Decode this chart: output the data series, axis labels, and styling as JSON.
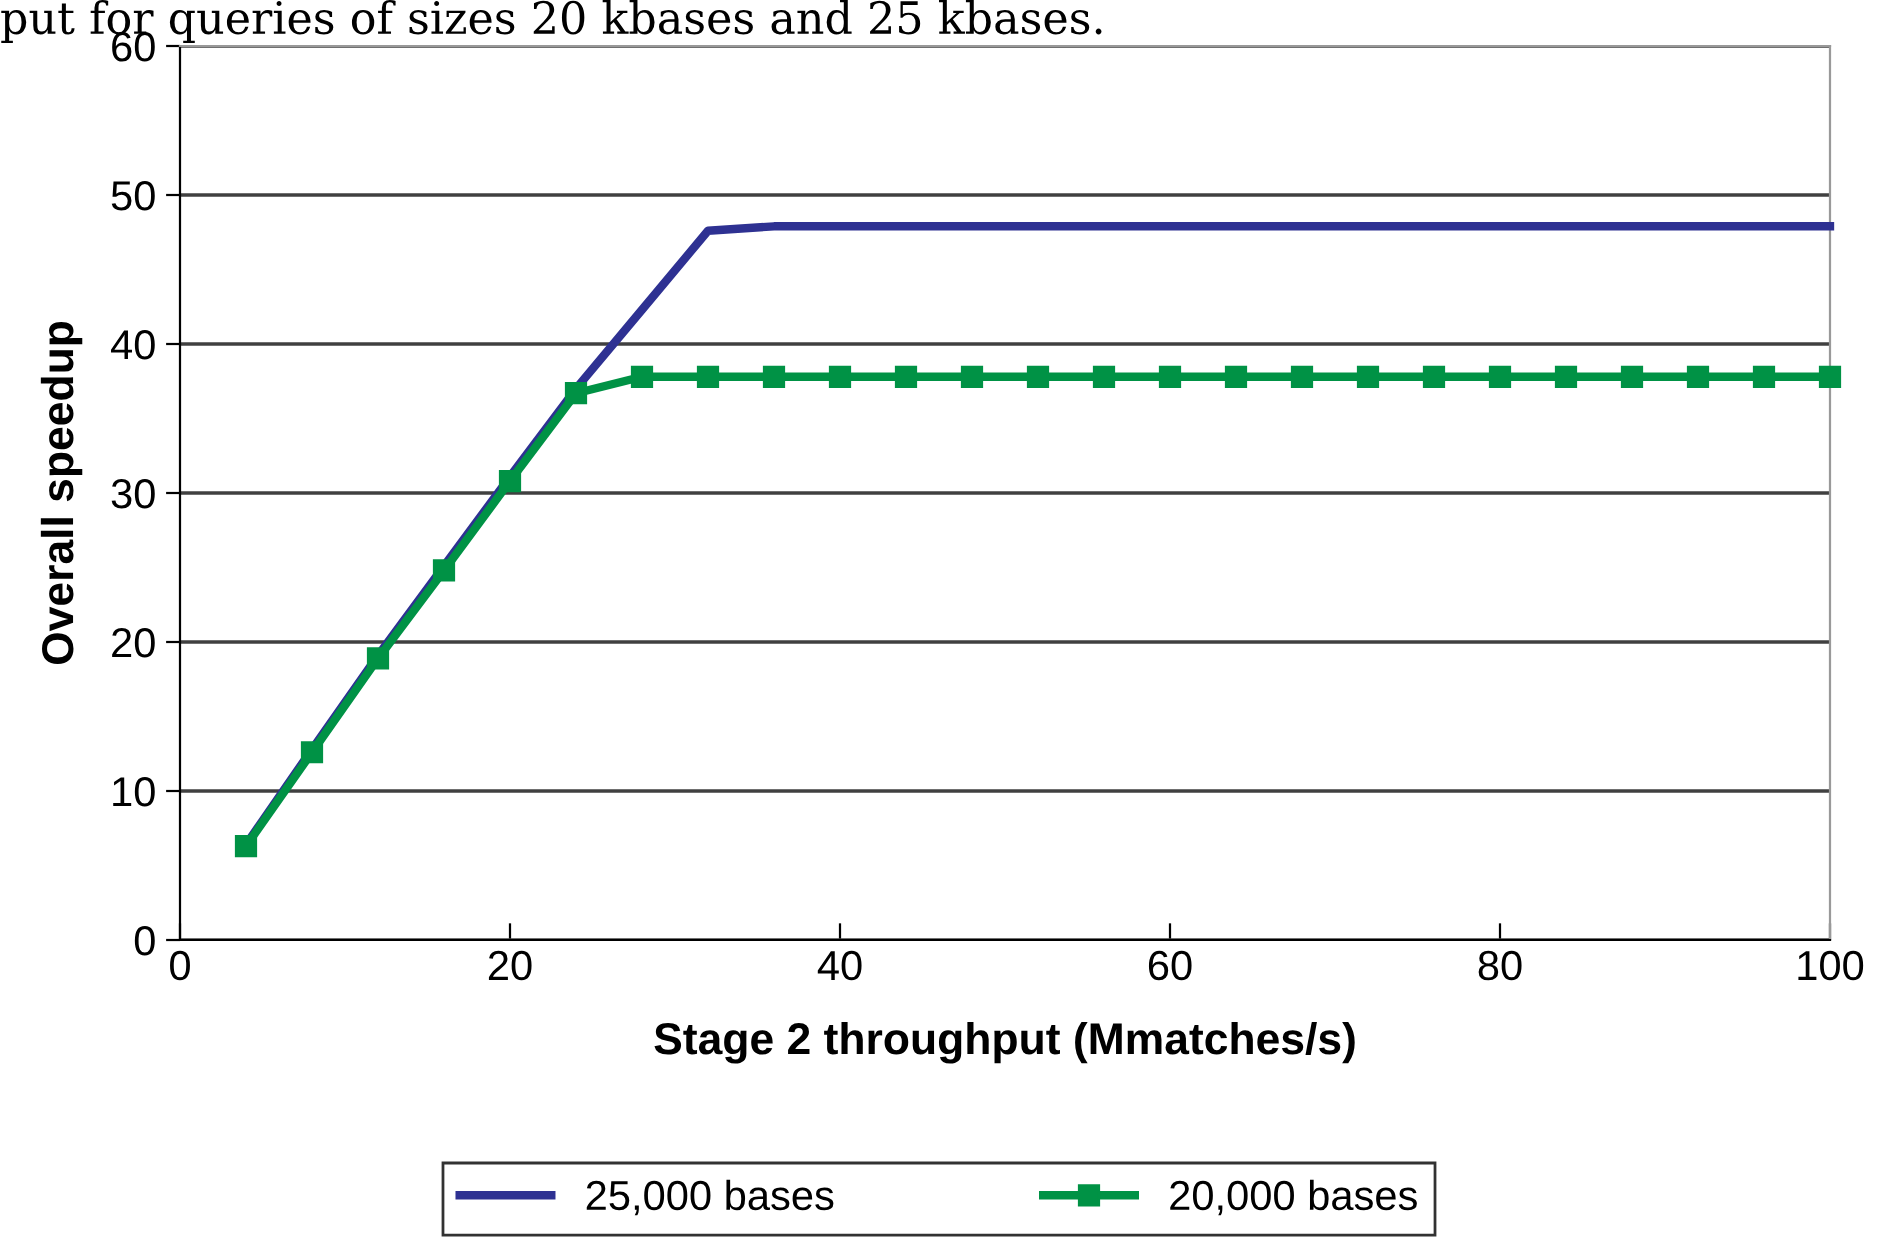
{
  "chart_data": {
    "type": "line",
    "xlabel": "Stage 2 throughput (Mmatches/s)",
    "ylabel": "Overall speedup",
    "annotations": [
      "put for queries of sizes 20 kbases and 25 kbases."
    ],
    "x": [
      4,
      8,
      12,
      16,
      20,
      24,
      28,
      32,
      36,
      40,
      44,
      48,
      52,
      56,
      60,
      64,
      68,
      72,
      76,
      80,
      84,
      88,
      92,
      96,
      100
    ],
    "series": [
      {
        "name": "25,000 bases",
        "color": "#2e3192",
        "marker": "none",
        "values": [
          6.4,
          12.8,
          19.1,
          25.1,
          31.1,
          37.0,
          42.3,
          47.6,
          47.9,
          47.9,
          47.9,
          47.9,
          47.9,
          47.9,
          47.9,
          47.9,
          47.9,
          47.9,
          47.9,
          47.9,
          47.9,
          47.9,
          47.9,
          47.9,
          47.9
        ]
      },
      {
        "name": "20,000 bases",
        "color": "#009245",
        "marker": "square",
        "values": [
          6.3,
          12.6,
          18.9,
          24.8,
          30.8,
          36.7,
          37.8,
          37.8,
          37.8,
          37.8,
          37.8,
          37.8,
          37.8,
          37.8,
          37.8,
          37.8,
          37.8,
          37.8,
          37.8,
          37.8,
          37.8,
          37.8,
          37.8,
          37.8,
          37.8
        ]
      }
    ],
    "xlim": [
      0,
      100
    ],
    "xticks": [
      0,
      20,
      40,
      60,
      80,
      100
    ],
    "ylim": [
      0,
      60
    ],
    "yticks": [
      0,
      10,
      20,
      30,
      40,
      50,
      60
    ],
    "grid": "y",
    "legend": "bottom",
    "line_style": "solid"
  }
}
